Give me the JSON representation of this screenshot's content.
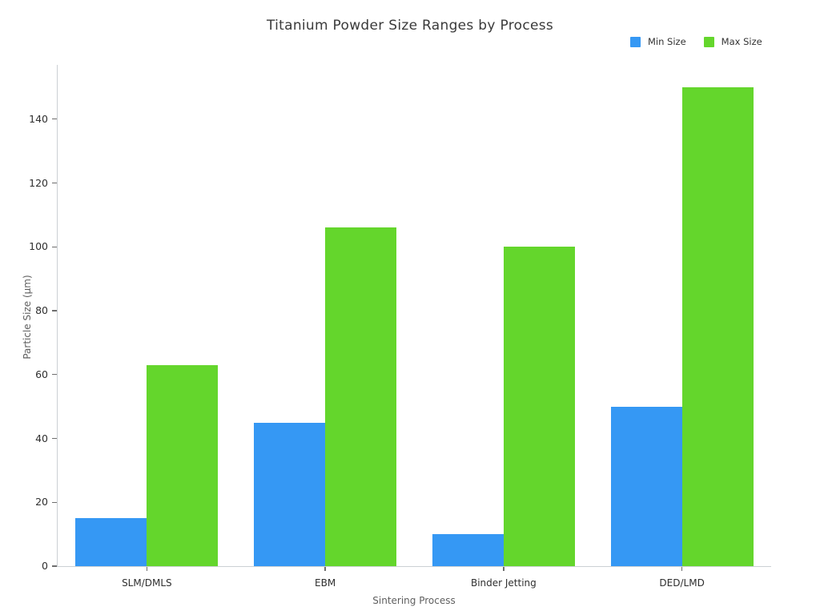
{
  "title": "Titanium Powder Size Ranges by Process",
  "colors": {
    "background": "#ffffff",
    "min_series": "#3598f4",
    "max_series": "#64d62c",
    "spine": "#ccd0d4",
    "tick": "#6e6e6e",
    "tick_label": "#2f2f2f",
    "axis_label": "#5f5f5f",
    "title": "#3a3a3a"
  },
  "chart_data": {
    "type": "bar",
    "title": "Titanium Powder Size Ranges by Process",
    "xlabel": "Sintering Process",
    "ylabel": "Particle Size (µm)",
    "categories": [
      "SLM/DMLS",
      "EBM",
      "Binder Jetting",
      "DED/LMD"
    ],
    "series": [
      {
        "name": "Min Size",
        "color": "#3598f4",
        "values": [
          15,
          45,
          10,
          50
        ]
      },
      {
        "name": "Max Size",
        "color": "#64d62c",
        "values": [
          63,
          106,
          100,
          150
        ]
      }
    ],
    "ylim": [
      0,
      156
    ],
    "yticks": [
      0,
      20,
      40,
      60,
      80,
      100,
      120,
      140
    ],
    "grid": false,
    "legend_position": "top-right"
  }
}
